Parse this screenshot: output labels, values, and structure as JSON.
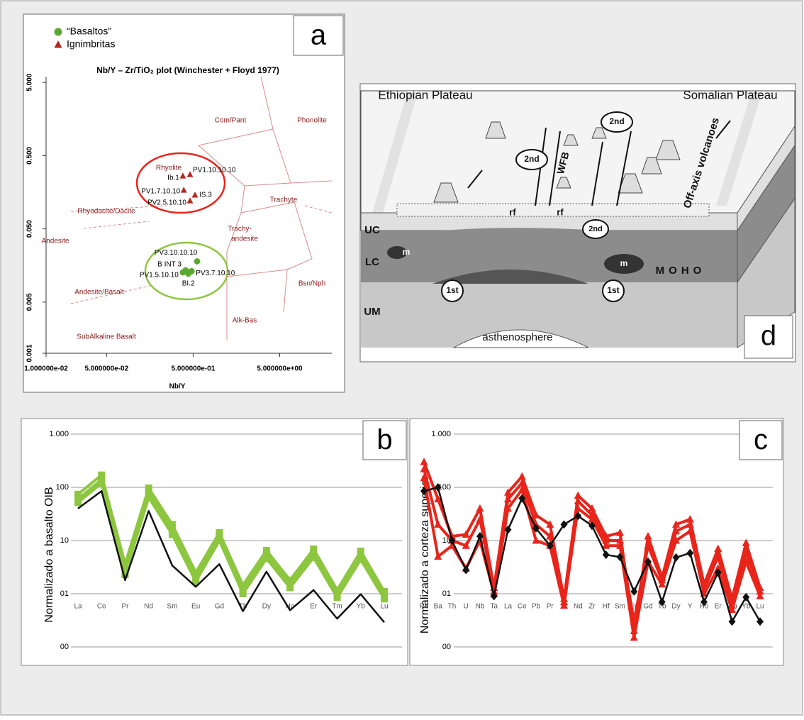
{
  "chart_data": [
    {
      "type": "scatter",
      "panel_label": "a",
      "title": "Nb/Y – Zr/TiO₂ plot (Winchester + Floyd 1977)",
      "x_label": "Nb/Y",
      "xlog": true,
      "ylog": true,
      "xlim": [
        0.01,
        20
      ],
      "ylim": [
        0.001,
        6
      ],
      "xticks": [
        {
          "value": 0.01,
          "label": "1.000000e-02"
        },
        {
          "value": 0.05,
          "label": "5.000000e-02"
        },
        {
          "value": 0.5,
          "label": "5.000000e-01"
        },
        {
          "value": 5,
          "label": "5.000000e+00"
        }
      ],
      "yticks": [
        {
          "value": 0.001,
          "label": "0.001"
        },
        {
          "value": 0.005,
          "label": "0.005"
        },
        {
          "value": 0.05,
          "label": "0.050"
        },
        {
          "value": 0.5,
          "label": "0.500"
        },
        {
          "value": 5,
          "label": "5.000"
        }
      ],
      "field_labels": [
        "Com/Pant",
        "Phonolite",
        "Rhyolite",
        "Trachyte",
        "Rhyodacite/Dacite",
        "Trachy-",
        "andesite",
        "Andesite",
        "Andesite/Basalt",
        "Bsn/Nph",
        "Alk-Bas",
        "SubAlkaline Basalt"
      ],
      "series": [
        {
          "name": "“Basaltos”",
          "color": "#5aa832",
          "marker": "circle",
          "x": [
            0.556,
            0.41,
            0.38,
            0.48,
            0.44
          ],
          "y": [
            0.018,
            0.0136,
            0.0127,
            0.0132,
            0.0122
          ],
          "point_labels": [
            "PV3.10.10.10",
            "B INT 3",
            "PV1.5.10.10",
            "PV3.7.10.10",
            "BI.2"
          ]
        },
        {
          "name": "Ignimbritas",
          "color": "#b5261e",
          "marker": "triangle",
          "x": [
            0.38,
            0.46,
            0.39,
            0.525,
            0.46
          ],
          "y": [
            0.264,
            0.276,
            0.169,
            0.145,
            0.121
          ],
          "point_labels": [
            "Ib.1",
            "PV1.10.10.10",
            "PV1.7.10.10",
            "IS.3",
            "PV2.5.10.10"
          ]
        }
      ]
    },
    {
      "type": "line",
      "panel_label": "b",
      "y_label": "Normalizado a basalto OIB",
      "ylog": true,
      "ylim": [
        0.1,
        1000
      ],
      "yticks": [
        {
          "value": 1000,
          "label": "1.000"
        },
        100,
        10,
        {
          "value": 1,
          "label": "01"
        },
        {
          "value": 0.1,
          "label": "00"
        }
      ],
      "grid": true,
      "categories": [
        "La",
        "Ce",
        "Pr",
        "Nd",
        "Sm",
        "Eu",
        "Gd",
        "Tb",
        "Dy",
        "Ho",
        "Er",
        "Tm",
        "Yb",
        "Lu"
      ],
      "series": [
        {
          "color": "#8dc63f",
          "marker": "square",
          "values": [
            74,
            170,
            3.6,
            97,
            20,
            2.5,
            14,
            1.45,
            6.5,
            1.8,
            6.9,
            1.17,
            6.3,
            1.1
          ]
        },
        {
          "color": "#8dc63f",
          "marker": "square",
          "values": [
            60,
            140,
            2.8,
            80,
            16,
            2.0,
            12,
            1.2,
            5.5,
            1.5,
            5.8,
            1.0,
            5.2,
            0.9
          ]
        },
        {
          "color": "#8dc63f",
          "marker": "square",
          "values": [
            52,
            120,
            2.3,
            65,
            13,
            1.7,
            10,
            1.0,
            4.6,
            1.3,
            4.8,
            0.85,
            4.4,
            0.8
          ]
        },
        {
          "color": "#111111",
          "values": [
            40,
            85,
            1.8,
            36,
            3.4,
            1.35,
            3.6,
            0.47,
            2.6,
            0.49,
            1.17,
            0.34,
            0.98,
            0.29
          ]
        }
      ]
    },
    {
      "type": "line",
      "panel_label": "c",
      "y_label": "Normalizado a corteza superior",
      "ylog": true,
      "ylim": [
        0.1,
        1000
      ],
      "yticks": [
        {
          "value": 1000,
          "label": "1.000"
        },
        100,
        10,
        {
          "value": 1,
          "label": "01"
        },
        {
          "value": 0.1,
          "label": "00"
        }
      ],
      "grid": true,
      "categories": [
        "Rb",
        "Ba",
        "Th",
        "U",
        "Nb",
        "Ta",
        "La",
        "Ce",
        "Pb",
        "Pr",
        "Sr",
        "Nd",
        "Zr",
        "Hf",
        "Sm",
        "Eu",
        "Gd",
        "Tb",
        "Dy",
        "Y",
        "Ho",
        "Er",
        "Tm",
        "Yb",
        "Lu"
      ],
      "series": [
        {
          "color": "#e8251b",
          "marker": "triangle",
          "values": [
            300,
            60,
            12,
            13,
            40,
            1.3,
            80,
            160,
            30,
            20,
            0.8,
            70,
            40,
            12,
            14,
            0.2,
            12,
            2,
            20,
            25,
            1.5,
            7,
            0.8,
            9,
            1.3
          ]
        },
        {
          "color": "#e8251b",
          "marker": "triangle",
          "values": [
            220,
            20,
            10,
            8,
            25,
            1.1,
            60,
            120,
            20,
            12,
            0.7,
            55,
            30,
            10,
            10,
            0.3,
            8,
            1.8,
            15,
            20,
            1.2,
            5,
            0.6,
            6,
            1.1
          ]
        },
        {
          "color": "#e8251b",
          "marker": "triangle",
          "values": [
            150,
            5,
            8,
            3,
            10,
            1,
            40,
            90,
            10,
            8,
            0.6,
            40,
            25,
            8,
            8,
            0.15,
            4,
            1.5,
            10,
            15,
            1,
            3,
            0.5,
            4,
            0.9
          ]
        },
        {
          "color": "#111111",
          "marker": "diamond",
          "values": [
            85,
            100,
            10,
            2.8,
            12,
            0.9,
            16,
            62,
            17,
            8,
            20,
            29,
            19,
            5.4,
            4.9,
            1.1,
            4,
            0.7,
            4.8,
            5.8,
            0.7,
            2.5,
            0.3,
            0.86,
            0.3
          ]
        }
      ]
    }
  ],
  "diagram": {
    "labels": [
      "Ethiopian Plateau",
      "Somalian Plateau",
      "2nd",
      "2nd",
      "2nd",
      "WFB",
      "Off-axis volcanoes",
      "rf",
      "rf",
      "UC",
      "LC",
      "UM",
      "m",
      "m",
      "MOHO",
      "1st",
      "1st",
      "asthenosphere",
      "d"
    ]
  }
}
